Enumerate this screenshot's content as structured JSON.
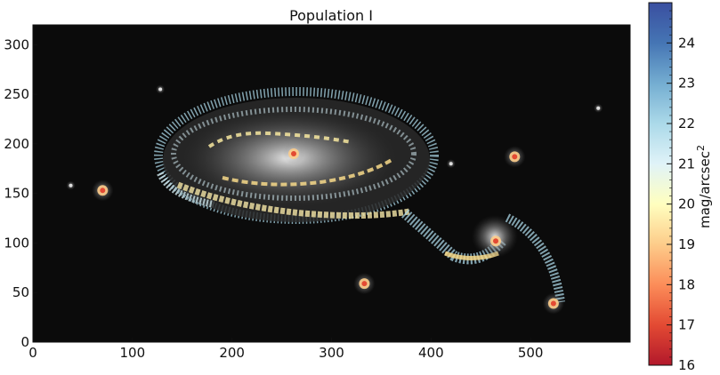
{
  "chart_data": {
    "type": "heatmap",
    "title": "Population I",
    "xlabel": "",
    "ylabel": "",
    "xlim": [
      0,
      600
    ],
    "ylim": [
      0,
      320
    ],
    "x_ticks": [
      "0",
      "100",
      "200",
      "300",
      "400",
      "500"
    ],
    "y_ticks": [
      "0",
      "50",
      "100",
      "150",
      "200",
      "250",
      "300"
    ],
    "colorbar": {
      "label": "mag/arcsec",
      "label_exponent": "2",
      "range": [
        16,
        25
      ],
      "ticks": [
        "16",
        "17",
        "18",
        "19",
        "20",
        "21",
        "22",
        "23",
        "24"
      ],
      "colormap": "RdYlBu",
      "stops": [
        "#b2182b",
        "#e34a33",
        "#fc8d59",
        "#fdcc8a",
        "#ffffbf",
        "#e0f3f8",
        "#abd9e9",
        "#74add1",
        "#4575b4",
        "#3a4fa0"
      ]
    },
    "background_color": "#0b0b0b",
    "sources": [
      {
        "name": "main galaxy core",
        "x": 262,
        "y": 190,
        "mag": 17.2
      },
      {
        "name": "companion galaxy core",
        "x": 465,
        "y": 102,
        "mag": 17.5
      },
      {
        "name": "left star",
        "x": 70,
        "y": 153,
        "mag": 17.0
      },
      {
        "name": "bottom star",
        "x": 333,
        "y": 59,
        "mag": 17.3
      },
      {
        "name": "right star",
        "x": 484,
        "y": 187,
        "mag": 17.6
      },
      {
        "name": "lower right star",
        "x": 523,
        "y": 39,
        "mag": 18.5
      },
      {
        "name": "faint star top",
        "x": 128,
        "y": 255,
        "mag": 21.5
      },
      {
        "name": "faint star far right",
        "x": 568,
        "y": 236,
        "mag": 21.5
      },
      {
        "name": "faint star mid",
        "x": 420,
        "y": 180,
        "mag": 21.0
      },
      {
        "name": "faint star left",
        "x": 38,
        "y": 158,
        "mag": 22.5
      }
    ]
  }
}
